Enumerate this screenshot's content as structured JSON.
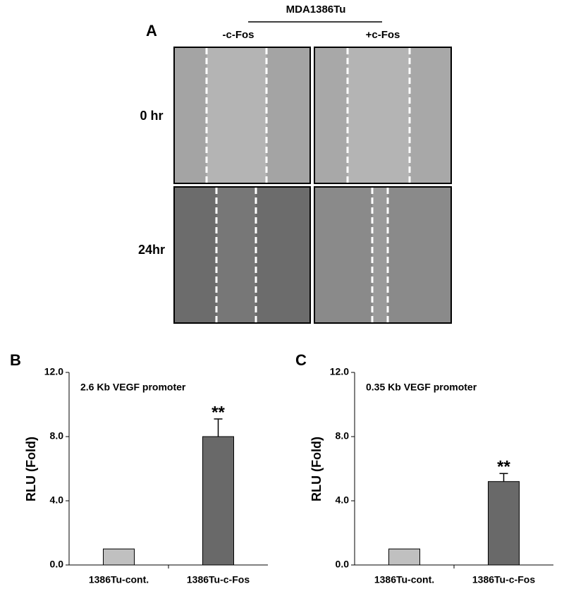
{
  "panel_a": {
    "label": "A",
    "cell_line": "MDA1386Tu",
    "columns": [
      "-c-Fos",
      "+c-Fos"
    ],
    "rows": [
      "0 hr",
      "24hr"
    ]
  },
  "chart_data": [
    {
      "type": "bar",
      "panel": "B",
      "title": "2.6 Kb VEGF promoter",
      "ylabel": "RLU (Fold)",
      "categories": [
        "1386Tu-cont.",
        "1386Tu-c-Fos"
      ],
      "values": [
        1.0,
        8.0
      ],
      "errors": [
        null,
        1.1
      ],
      "annotations": [
        null,
        "**"
      ],
      "colors": [
        "#c0c0c0",
        "#696969"
      ],
      "ylim": [
        0,
        12
      ],
      "yticks": [
        {
          "value": 0,
          "label": "0.0"
        },
        {
          "value": 4,
          "label": "4.0"
        },
        {
          "value": 8,
          "label": "8.0"
        },
        {
          "value": 12,
          "label": "12.0"
        }
      ]
    },
    {
      "type": "bar",
      "panel": "C",
      "title": "0.35 Kb VEGF promoter",
      "ylabel": "RLU (Fold)",
      "categories": [
        "1386Tu-cont.",
        "1386Tu-c-Fos"
      ],
      "values": [
        1.0,
        5.2
      ],
      "errors": [
        null,
        0.5
      ],
      "annotations": [
        null,
        "**"
      ],
      "colors": [
        "#c0c0c0",
        "#696969"
      ],
      "ylim": [
        0,
        12
      ],
      "yticks": [
        {
          "value": 0,
          "label": "0.0"
        },
        {
          "value": 4,
          "label": "4.0"
        },
        {
          "value": 8,
          "label": "8.0"
        },
        {
          "value": 12,
          "label": "12.0"
        }
      ]
    }
  ]
}
